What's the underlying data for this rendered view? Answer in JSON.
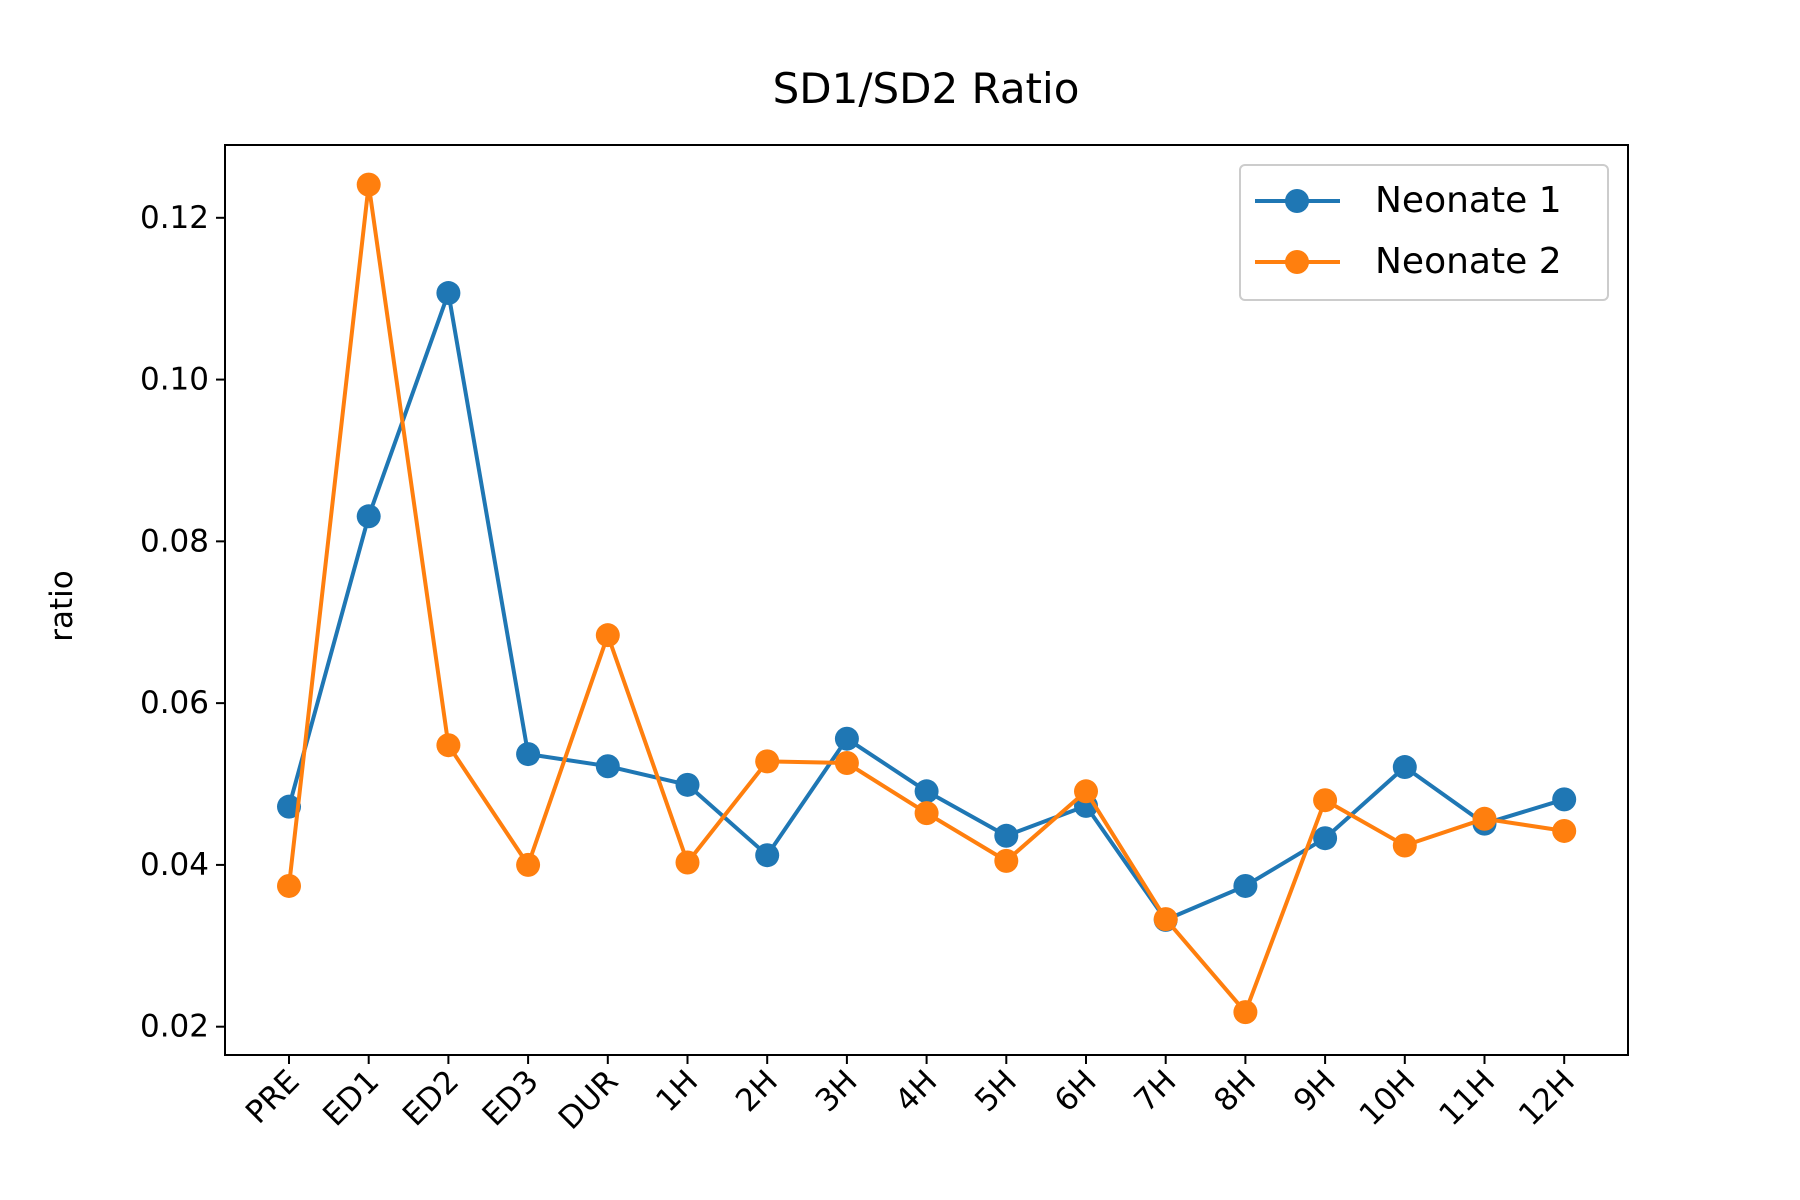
{
  "chart_data": {
    "type": "line",
    "title": "SD1/SD2 Ratio",
    "xlabel": "",
    "ylabel": "ratio",
    "categories": [
      "PRE",
      "ED1",
      "ED2",
      "ED3",
      "DUR",
      "1H",
      "2H",
      "3H",
      "4H",
      "5H",
      "6H",
      "7H",
      "8H",
      "9H",
      "10H",
      "11H",
      "12H"
    ],
    "ylim": [
      0.0165,
      0.129
    ],
    "yticks": [
      0.02,
      0.04,
      0.06,
      0.08,
      0.1,
      0.12
    ],
    "ytick_labels": [
      "0.02",
      "0.04",
      "0.06",
      "0.08",
      "0.10",
      "0.12"
    ],
    "grid": false,
    "legend_position": "top-right",
    "series": [
      {
        "name": "Neonate 1",
        "color": "#1f77b4",
        "marker": "circle",
        "values": [
          0.0472,
          0.0831,
          0.1107,
          0.0537,
          0.0522,
          0.0499,
          0.0412,
          0.0556,
          0.0491,
          0.0436,
          0.0473,
          0.0332,
          0.0374,
          0.0433,
          0.0521,
          0.0451,
          0.0481
        ]
      },
      {
        "name": "Neonate 2",
        "color": "#ff7f0e",
        "marker": "circle",
        "values": [
          0.0374,
          0.1241,
          0.0548,
          0.04,
          0.0684,
          0.0403,
          0.0528,
          0.0526,
          0.0464,
          0.0405,
          0.0491,
          0.0333,
          0.0218,
          0.048,
          0.0424,
          0.0457,
          0.0442
        ]
      }
    ]
  }
}
